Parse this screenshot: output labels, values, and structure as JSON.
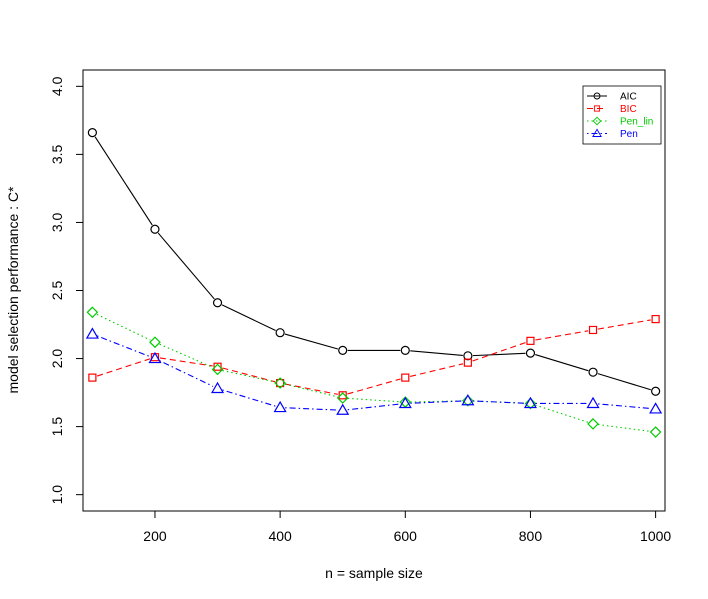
{
  "chart_data": {
    "type": "line",
    "title": "",
    "xlabel": "n = sample size",
    "ylabel": "model selection performance : C*",
    "xlim": [
      85,
      1015
    ],
    "ylim": [
      0.88,
      4.12
    ],
    "x_ticks": [
      200,
      400,
      600,
      800,
      1000
    ],
    "y_ticks": [
      1.0,
      1.5,
      2.0,
      2.5,
      3.0,
      3.5,
      4.0
    ],
    "x_tick_labels": [
      "200",
      "400",
      "600",
      "800",
      "1000"
    ],
    "y_tick_labels": [
      "1.0",
      "1.5",
      "2.0",
      "2.5",
      "3.0",
      "3.5",
      "4.0"
    ],
    "grid": false,
    "legend_position": "top-right",
    "x": [
      100,
      200,
      300,
      400,
      500,
      600,
      700,
      800,
      900,
      1000
    ],
    "series": [
      {
        "name": "AIC",
        "color": "#000000",
        "marker": "circle",
        "dash": "solid",
        "values": [
          3.66,
          2.95,
          2.41,
          2.19,
          2.06,
          2.06,
          2.02,
          2.04,
          1.9,
          1.76
        ]
      },
      {
        "name": "BIC",
        "color": "#ff0000",
        "marker": "square",
        "dash": "dashed",
        "values": [
          1.86,
          2.01,
          1.94,
          1.82,
          1.73,
          1.86,
          1.97,
          2.13,
          2.21,
          2.29
        ]
      },
      {
        "name": "Pen_lin",
        "color": "#00cc00",
        "marker": "diamond",
        "dash": "dotted",
        "values": [
          2.34,
          2.12,
          1.92,
          1.82,
          1.71,
          1.68,
          1.69,
          1.67,
          1.52,
          1.46
        ]
      },
      {
        "name": "Pen",
        "color": "#0000ff",
        "marker": "triangle",
        "dash": "dotdash",
        "values": [
          2.18,
          2.0,
          1.78,
          1.64,
          1.62,
          1.67,
          1.69,
          1.67,
          1.67,
          1.63
        ]
      }
    ]
  }
}
